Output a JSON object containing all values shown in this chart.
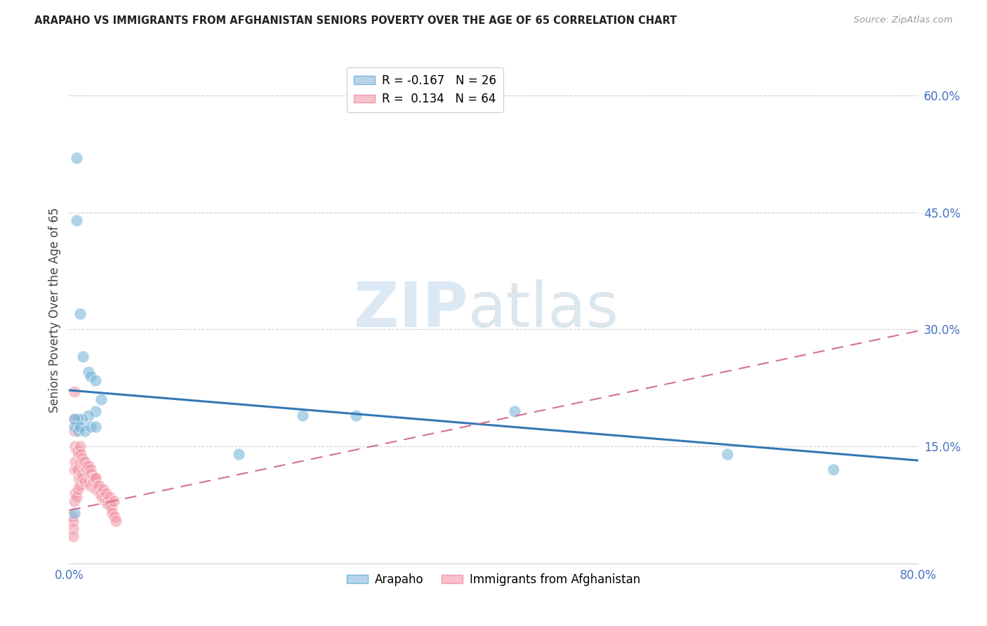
{
  "title": "ARAPAHO VS IMMIGRANTS FROM AFGHANISTAN SENIORS POVERTY OVER THE AGE OF 65 CORRELATION CHART",
  "source": "Source: ZipAtlas.com",
  "ylabel": "Seniors Poverty Over the Age of 65",
  "xlim": [
    0,
    0.8
  ],
  "ylim": [
    0,
    0.65
  ],
  "ytick_vals": [
    0.0,
    0.15,
    0.3,
    0.45,
    0.6
  ],
  "ytick_labels": [
    "",
    "15.0%",
    "30.0%",
    "45.0%",
    "60.0%"
  ],
  "xtick_vals": [
    0.0,
    0.2,
    0.4,
    0.6,
    0.8
  ],
  "xtick_labels": [
    "0.0%",
    "",
    "",
    "",
    "80.0%"
  ],
  "arapaho_color": "#7ab8d9",
  "afghanistan_color": "#f29bab",
  "arapaho_line_color": "#3478b5",
  "afghanistan_line_color": "#d47090",
  "watermark": "ZIPatlas",
  "watermark_zip": "ZIP",
  "watermark_atlas": "atlas",
  "legend1_label1": "R = -0.167   N = 26",
  "legend1_label2": "R =  0.134   N = 64",
  "legend2_label1": "Arapaho",
  "legend2_label2": "Immigrants from Afghanistan",
  "arapaho_x": [
    0.007,
    0.007,
    0.01,
    0.013,
    0.018,
    0.02,
    0.025,
    0.03,
    0.025,
    0.018,
    0.012,
    0.008,
    0.005,
    0.005,
    0.008,
    0.01,
    0.015,
    0.02,
    0.025,
    0.16,
    0.22,
    0.27,
    0.42,
    0.62,
    0.72,
    0.005
  ],
  "arapaho_y": [
    0.52,
    0.44,
    0.32,
    0.265,
    0.245,
    0.24,
    0.235,
    0.21,
    0.195,
    0.19,
    0.185,
    0.185,
    0.185,
    0.175,
    0.17,
    0.175,
    0.17,
    0.175,
    0.175,
    0.14,
    0.19,
    0.19,
    0.195,
    0.14,
    0.12,
    0.065
  ],
  "afghanistan_x": [
    0.003,
    0.004,
    0.004,
    0.004,
    0.005,
    0.005,
    0.005,
    0.005,
    0.005,
    0.006,
    0.006,
    0.006,
    0.007,
    0.007,
    0.007,
    0.008,
    0.008,
    0.008,
    0.009,
    0.009,
    0.01,
    0.01,
    0.01,
    0.011,
    0.011,
    0.012,
    0.012,
    0.013,
    0.013,
    0.014,
    0.015,
    0.015,
    0.016,
    0.017,
    0.018,
    0.018,
    0.019,
    0.02,
    0.02,
    0.021,
    0.022,
    0.023,
    0.024,
    0.025,
    0.025,
    0.026,
    0.027,
    0.028,
    0.029,
    0.03,
    0.031,
    0.032,
    0.033,
    0.034,
    0.035,
    0.036,
    0.037,
    0.038,
    0.039,
    0.04,
    0.041,
    0.042,
    0.043,
    0.044
  ],
  "afghanistan_y": [
    0.06,
    0.055,
    0.045,
    0.035,
    0.22,
    0.185,
    0.17,
    0.12,
    0.08,
    0.15,
    0.13,
    0.09,
    0.145,
    0.12,
    0.085,
    0.145,
    0.12,
    0.095,
    0.14,
    0.11,
    0.15,
    0.13,
    0.1,
    0.14,
    0.11,
    0.135,
    0.115,
    0.13,
    0.11,
    0.125,
    0.13,
    0.105,
    0.125,
    0.12,
    0.125,
    0.105,
    0.115,
    0.12,
    0.1,
    0.115,
    0.11,
    0.105,
    0.11,
    0.11,
    0.095,
    0.1,
    0.095,
    0.1,
    0.09,
    0.09,
    0.085,
    0.095,
    0.085,
    0.08,
    0.09,
    0.08,
    0.075,
    0.085,
    0.075,
    0.07,
    0.065,
    0.08,
    0.06,
    0.055
  ],
  "arapaho_line_x": [
    0.0,
    0.8
  ],
  "arapaho_line_y": [
    0.222,
    0.132
  ],
  "afghanistan_line_x": [
    0.0,
    0.8
  ],
  "afghanistan_line_y": [
    0.068,
    0.298
  ]
}
